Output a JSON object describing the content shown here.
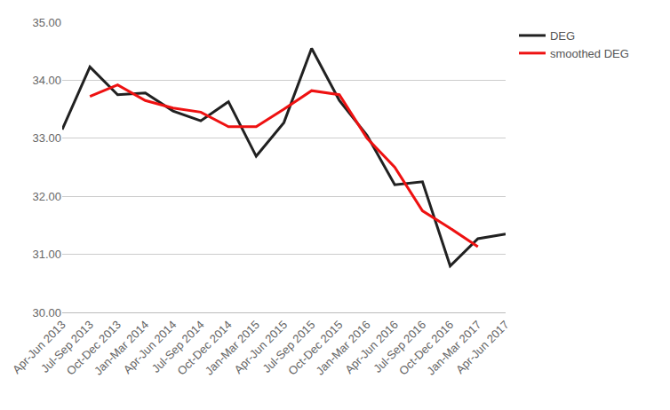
{
  "chart_data": {
    "type": "line",
    "categories": [
      "Apr-Jun 2013",
      "Jul-Sep 2013",
      "Oct-Dec 2013",
      "Jan-Mar 2014",
      "Apr-Jun 2014",
      "Jul-Sep 2014",
      "Oct-Dec 2014",
      "Jan-Mar 2015",
      "Apr-Jun 2015",
      "Jul-Sep 2015",
      "Oct-Dec 2015",
      "Jan-Mar 2016",
      "Apr-Jun 2016",
      "Jul-Sep 2016",
      "Oct-Dec 2016",
      "Jan-Mar 2017",
      "Apr-Jun 2017"
    ],
    "series": [
      {
        "name": "DEG",
        "color": "#212121",
        "values": [
          33.15,
          34.23,
          33.75,
          33.78,
          33.47,
          33.3,
          33.63,
          32.69,
          33.27,
          34.55,
          33.65,
          33.05,
          32.2,
          32.25,
          30.8,
          31.27,
          31.35
        ]
      },
      {
        "name": "smoothed DEG",
        "color": "#ee1111",
        "values": [
          null,
          33.72,
          33.92,
          33.65,
          33.52,
          33.45,
          33.2,
          33.2,
          33.5,
          33.82,
          33.75,
          33.0,
          32.5,
          31.75,
          31.45,
          31.13,
          null
        ]
      }
    ],
    "ylim": [
      30,
      35
    ],
    "yticks": [
      {
        "value": 30,
        "label": "30.00"
      },
      {
        "value": 31,
        "label": "31.00"
      },
      {
        "value": 32,
        "label": "32.00"
      },
      {
        "value": 33,
        "label": "33.00"
      },
      {
        "value": 34,
        "label": "34.00"
      },
      {
        "value": 35,
        "label": "35.00"
      }
    ],
    "grid": true,
    "legend": "right"
  }
}
